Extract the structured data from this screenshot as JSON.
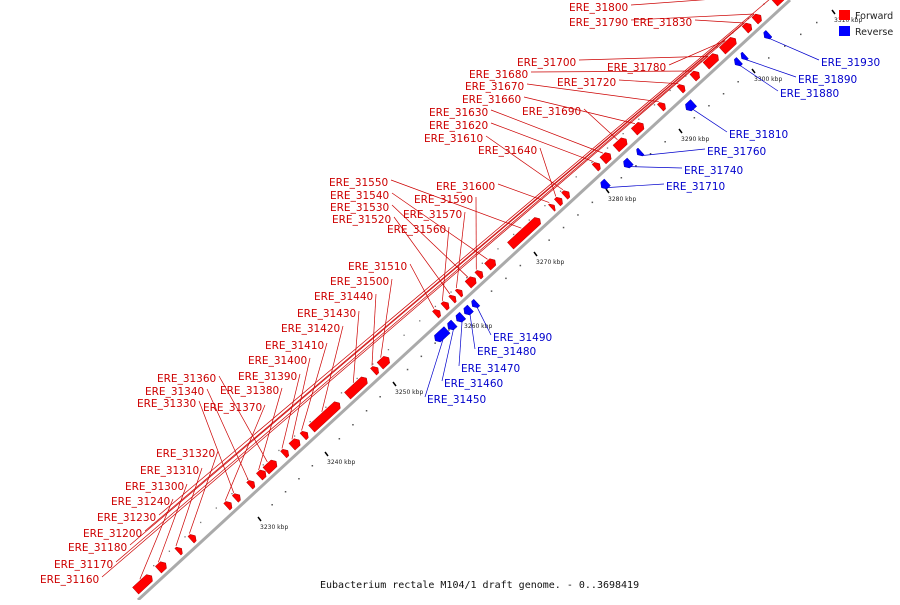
{
  "caption": "Eubacterium rectale M104/1 draft genome. - 0..3698419",
  "legend": [
    {
      "label": "Forward",
      "color": "#ff0000"
    },
    {
      "label": "Reverse",
      "color": "#0000ff"
    }
  ],
  "colors": {
    "forward": "#ff0000",
    "forward_text": "#cc0000",
    "reverse": "#0000ff",
    "reverse_text": "#0000cc",
    "axis": "#999999"
  },
  "ticks": [
    "3230 kbp",
    "3240 kbp",
    "3250 kbp",
    "3260 kbp",
    "3270 kbp",
    "3280 kbp",
    "3290 kbp",
    "3300 kbp",
    "3310 kbp"
  ],
  "forward_labels": [
    "ERE_31800",
    "ERE_31790",
    "ERE_31830",
    "ERE_31780",
    "ERE_31700",
    "ERE_31680",
    "ERE_31720",
    "ERE_31670",
    "ERE_31660",
    "ERE_31690",
    "ERE_31630",
    "ERE_31620",
    "ERE_31610",
    "ERE_31640",
    "ERE_31600",
    "ERE_31550",
    "ERE_31540",
    "ERE_31590",
    "ERE_31530",
    "ERE_31570",
    "ERE_31520",
    "ERE_31560",
    "ERE_31510",
    "ERE_31500",
    "ERE_31440",
    "ERE_31430",
    "ERE_31420",
    "ERE_31410",
    "ERE_31400",
    "ERE_31390",
    "ERE_31360",
    "ERE_31380",
    "ERE_31340",
    "ERE_31330",
    "ERE_31370",
    "ERE_31320",
    "ERE_31310",
    "ERE_31300",
    "ERE_31240",
    "ERE_31230",
    "ERE_31200",
    "ERE_31180",
    "ERE_31170",
    "ERE_31160"
  ],
  "reverse_labels": [
    "ERE_31930",
    "ERE_31890",
    "ERE_31880",
    "ERE_31810",
    "ERE_31760",
    "ERE_31740",
    "ERE_31710",
    "ERE_31490",
    "ERE_31480",
    "ERE_31470",
    "ERE_31460",
    "ERE_31450"
  ]
}
